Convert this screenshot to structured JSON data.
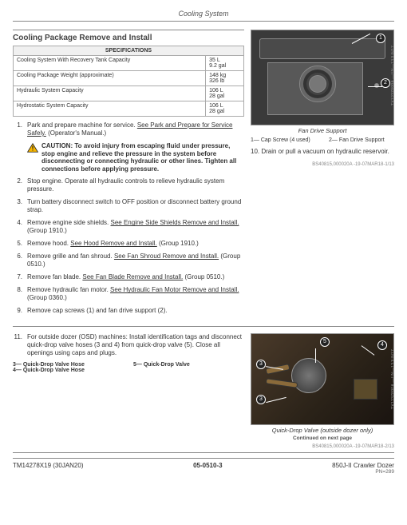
{
  "header": {
    "title": "Cooling System"
  },
  "section": {
    "title": "Cooling Package Remove and Install"
  },
  "spec_table": {
    "header": "SPECIFICATIONS",
    "rows": [
      {
        "label": "Cooling System With Recovery Tank Capacity",
        "value": "35 L\n9.2 gal"
      },
      {
        "label": "Cooling Package Weight (approximate)",
        "value": "148 kg\n326 lb"
      },
      {
        "label": "Hydraulic System Capacity",
        "value": "106 L\n28 gal"
      },
      {
        "label": "Hydrostatic System Capacity",
        "value": "106 L\n28 gal"
      }
    ]
  },
  "steps_main": [
    {
      "n": "1.",
      "plain_a": "Park and prepare machine for service. ",
      "link_a": "See Park and Prepare for Service Safely.",
      "plain_b": " (Operator's Manual.)"
    },
    {
      "n": "",
      "caution": true,
      "plain_a": "CAUTION: To avoid injury from escaping fluid under pressure, stop engine and relieve the pressure in the system before disconnecting or connecting hydraulic or other lines. Tighten all connections before applying pressure."
    },
    {
      "n": "2.",
      "plain_a": "Stop engine. Operate all hydraulic controls to relieve hydraulic system pressure."
    },
    {
      "n": "3.",
      "plain_a": "Turn battery disconnect switch to OFF position or disconnect battery ground strap."
    },
    {
      "n": "4.",
      "plain_a": "Remove engine side shields. ",
      "link_a": "See Engine Side Shields Remove and Install.",
      "plain_b": " (Group 1910.)"
    },
    {
      "n": "5.",
      "plain_a": "Remove hood. ",
      "link_a": "See Hood Remove and Install.",
      "plain_b": " (Group 1910.)"
    },
    {
      "n": "6.",
      "plain_a": "Remove grille and fan shroud. ",
      "link_a": "See Fan Shroud Remove and Install.",
      "plain_b": " (Group 0510.)"
    },
    {
      "n": "7.",
      "plain_a": "Remove fan blade. ",
      "link_a": "See Fan Blade Remove and Install.",
      "plain_b": " (Group 0510.)"
    },
    {
      "n": "8.",
      "plain_a": "Remove hydraulic fan motor. ",
      "link_a": "See Hydraulic Fan Motor Remove and Install.",
      "plain_b": " (Group 0360.)"
    },
    {
      "n": "9.",
      "plain_a": "Remove cap screws (1) and fan drive support (2)."
    }
  ],
  "step10": "10. Drain or pull a vacuum on hydraulic reservoir.",
  "fig1": {
    "caption": "Fan Drive Support",
    "side_note": "TX1237899A —UN—13JUN17",
    "legend1": "1— Cap Screw (4 used)",
    "legend2": "2— Fan Drive Support",
    "ref": "BS40815,000020A -19-07MAR18-1/13",
    "c1": "1",
    "c2": "2"
  },
  "step11": {
    "n": "11.",
    "text": "For outside dozer (OSD) machines:  Install identification tags and disconnect quick-drop valve hoses (3 and 4) from quick-drop valve (5). Close all openings using caps and plugs.",
    "legend_left": "3— Quick-Drop Valve Hose\n4— Quick-Drop Valve Hose",
    "legend_right": "5— Quick-Drop Valve"
  },
  "fig2": {
    "caption": "Quick-Drop Valve (outside dozer only)",
    "side_note": "TX1237890A —UN—13JUN17",
    "ref": "BS40815,000020A -19-07MAR18-2/13",
    "c3": "3",
    "c4": "4",
    "c5": "5",
    "c3b": "3"
  },
  "continued": "Continued on next page",
  "footer": {
    "left": "TM14278X19 (30JAN20)",
    "center": "05-0510-3",
    "right_title": "850J-II Crawler Dozer",
    "right_pn": "PN=289"
  },
  "colors": {
    "fig1_bg": "#3a3a3a",
    "fig2_bg_a": "#4a3a2a",
    "callout_bg": "#222222",
    "callout_fg": "#ffffff",
    "caution_fill": "#f7b500"
  }
}
